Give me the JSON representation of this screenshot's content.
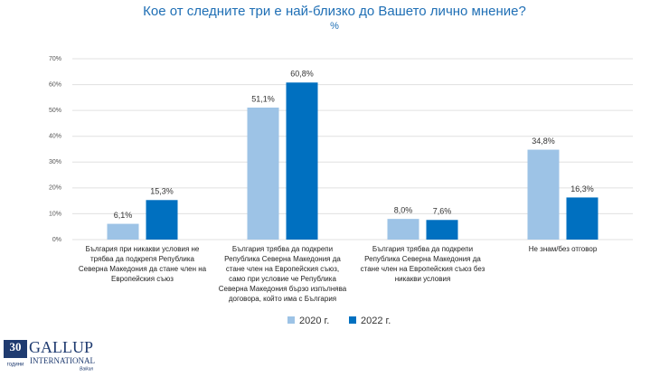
{
  "chart_data": {
    "type": "bar",
    "title": "Кое от следните три е най-близко до Вашето лично мнение?",
    "subtitle": "%",
    "categories": [
      "България при никакви условия не трябва да подкрепя Република Северна Македония да стане член на Европейския съюз",
      "България трябва да подкрепи Република Северна Македония да стане член на Европейския съюз, само при условие че Република Северна Македония бързо изпълнява договора, който има с България",
      "България трябва да подкрепи Република Северна Македония да стане член на Европейския съюз без никакви условия",
      "Не знам/без отговор"
    ],
    "series": [
      {
        "name": "2020 г.",
        "color": "#9dc3e6",
        "values": [
          6.1,
          51.1,
          8.0,
          34.8
        ],
        "value_labels": [
          "6,1%",
          "51,1%",
          "8,0%",
          "34,8%"
        ]
      },
      {
        "name": "2022 г.",
        "color": "#0070c0",
        "values": [
          15.3,
          60.8,
          7.6,
          16.3
        ],
        "value_labels": [
          "15,3%",
          "60,8%",
          "7,6%",
          "16,3%"
        ]
      }
    ],
    "ylim": [
      0,
      70
    ],
    "yticks": [
      {
        "value": 0,
        "label": "0%"
      },
      {
        "value": 10,
        "label": "10%"
      },
      {
        "value": 20,
        "label": "20%"
      },
      {
        "value": 30,
        "label": "30%"
      },
      {
        "value": 40,
        "label": "40%"
      },
      {
        "value": 50,
        "label": "50%"
      },
      {
        "value": 60,
        "label": "60%"
      },
      {
        "value": 70,
        "label": "70%"
      }
    ],
    "grid": true,
    "legend": "bottom"
  },
  "logo": {
    "number": "30",
    "years": "години",
    "name": "GALLUP",
    "sub": "INTERNATIONAL",
    "region": "Balkan"
  }
}
